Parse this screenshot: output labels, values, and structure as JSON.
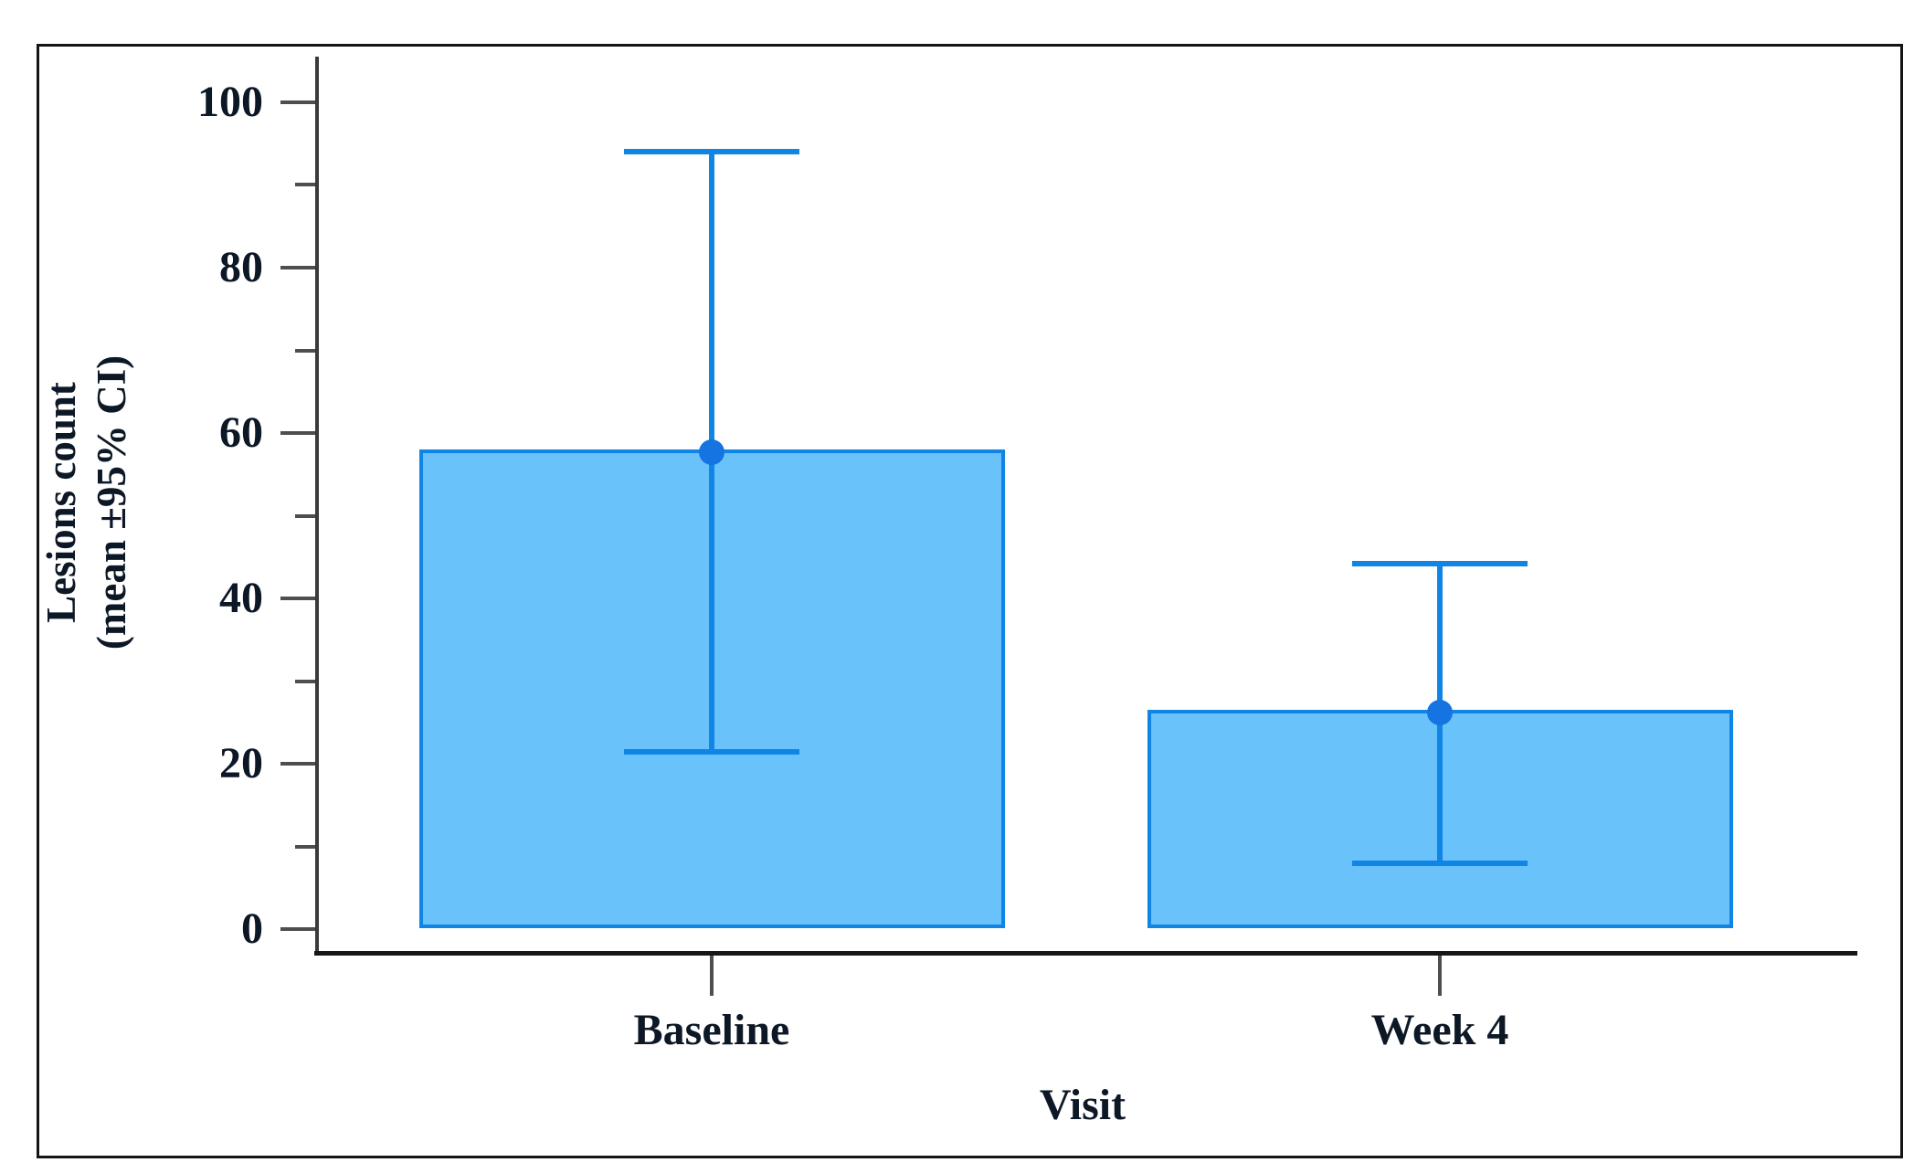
{
  "chart_data": {
    "type": "bar",
    "title": "",
    "xlabel": "Visit",
    "ylabel_lines": [
      "Lesions count",
      "(mean ±95% CI)"
    ],
    "categories": [
      "Baseline",
      "Week 4"
    ],
    "series": [
      {
        "name": "Lesions count (mean)",
        "values": [
          58,
          26.5
        ],
        "ci_lower": [
          21.4,
          8
        ],
        "ci_upper": [
          94,
          44.2
        ]
      }
    ],
    "ylim": [
      0,
      100
    ],
    "y_major_ticks": [
      100,
      80,
      60,
      40,
      20,
      0
    ],
    "y_minor_ticks": [
      90,
      70,
      50,
      30,
      10
    ],
    "grid": false,
    "legend": "none",
    "error_bar_style": "capped vertical error bars with circular marker at mean",
    "colors": {
      "bar_fill": "#69C2F9",
      "bar_border": "#1085E6",
      "error_bar": "#1085E6",
      "marker": "#1673E2",
      "y_axis": "#3A3A3A",
      "x_axis": "#161616",
      "tick": "#4E4E4E",
      "text": "#0D1826",
      "frame": "#141414"
    }
  }
}
